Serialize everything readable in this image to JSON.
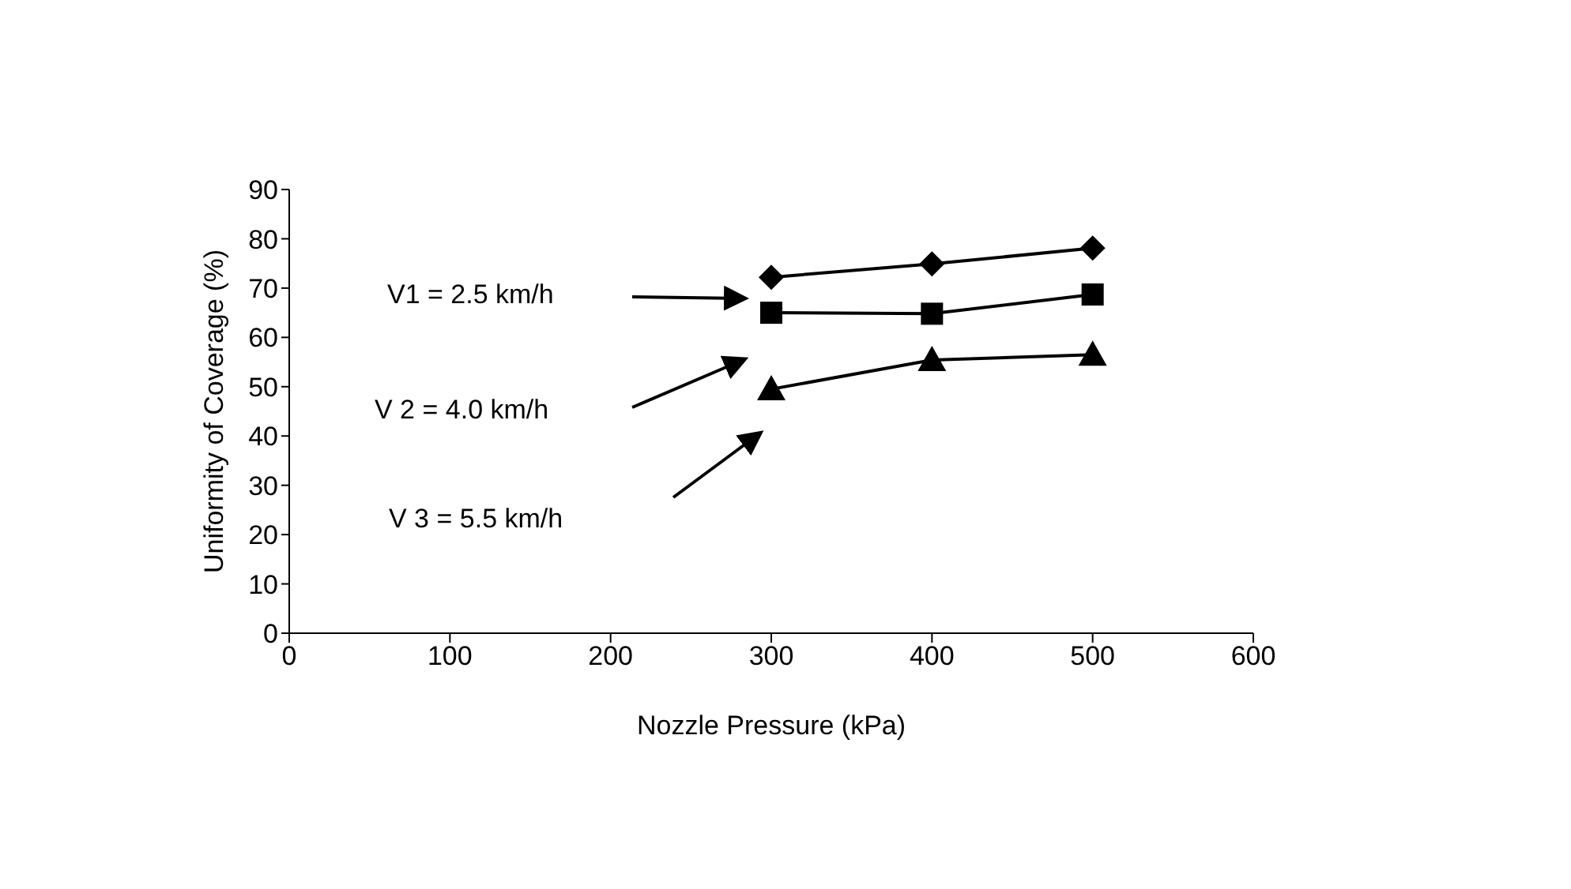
{
  "chart_data": {
    "type": "line",
    "xlabel": "Nozzle Pressure (kPa)",
    "ylabel": "Uniformity of Coverage (%)",
    "x": [
      300,
      400,
      500
    ],
    "series": [
      {
        "color": "#000000",
        "marker": "diamond",
        "values": [
          72.2,
          74.9,
          78.1
        ]
      },
      {
        "color": "#000000",
        "marker": "square",
        "values": [
          65,
          64.8,
          68.7
        ]
      },
      {
        "color": "#000000",
        "marker": "triangle",
        "values": [
          49.5,
          55.4,
          56.5
        ]
      }
    ],
    "annotations": [
      "V1 = 2.5 km/h",
      "V 2 = 4.0 km/h",
      "V 3 = 5.5 km/h"
    ],
    "xlim": [
      0,
      600
    ],
    "xticks": [
      0,
      100,
      200,
      300,
      400,
      500,
      600
    ],
    "ylim": [
      0,
      90
    ],
    "yticks": [
      0,
      10,
      20,
      30,
      40,
      50,
      60,
      70,
      80,
      90
    ],
    "grid": false,
    "legend": false,
    "line_style": "solid"
  }
}
